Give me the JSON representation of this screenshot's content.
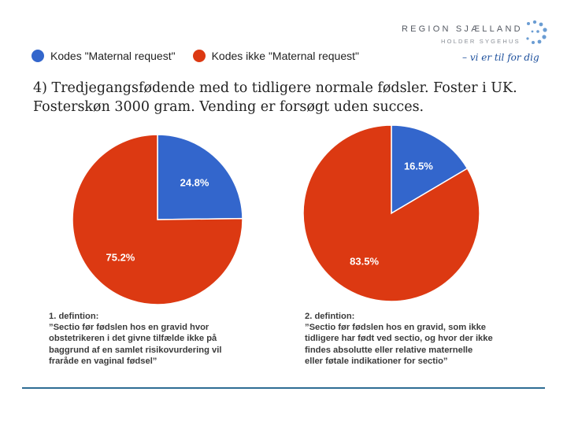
{
  "logo": {
    "name": "REGION SJÆLLAND",
    "subtitle": "HOLDER SYGEHUS",
    "slogan": "– vi er til for dig",
    "dot_color": "#3a7cc4"
  },
  "chart_data": {
    "type": "pie",
    "legend": [
      {
        "label": "Kodes \"Maternal request\"",
        "color": "#3366cc"
      },
      {
        "label": "Kodes ikke \"Maternal request\"",
        "color": "#dc3912"
      }
    ],
    "title": "4) Tredjegangsfødende med to tidligere normale fødsler. Foster i UK. Fosterskøn 3000 gram. Vending er forsøgt uden succes.",
    "charts": [
      {
        "name": "definition-1",
        "slices": [
          {
            "series": "Kodes \"Maternal request\"",
            "value": 24.8,
            "label": "24.8%",
            "color": "#3366cc"
          },
          {
            "series": "Kodes ikke \"Maternal request\"",
            "value": 75.2,
            "label": "75.2%",
            "color": "#dc3912"
          }
        ]
      },
      {
        "name": "definition-2",
        "slices": [
          {
            "series": "Kodes \"Maternal request\"",
            "value": 16.5,
            "label": "16.5%",
            "color": "#3366cc"
          },
          {
            "series": "Kodes ikke \"Maternal request\"",
            "value": 83.5,
            "label": "83.5%",
            "color": "#dc3912"
          }
        ]
      }
    ]
  },
  "definitions": [
    {
      "heading": "1. defintion:",
      "text": "”Sectio før fødslen hos en gravid hvor\nobstetrikeren i det givne tilfælde ikke på\nbaggrund af en samlet risikovurdering vil\nfraråde en vaginal fødsel”"
    },
    {
      "heading": "2. defintion:",
      "text": "”Sectio før fødslen hos en gravid, som ikke\ntidligere har født ved sectio, og hvor der ikke\nfindes absolutte eller relative maternelle\neller føtale indikationer for sectio”"
    }
  ]
}
